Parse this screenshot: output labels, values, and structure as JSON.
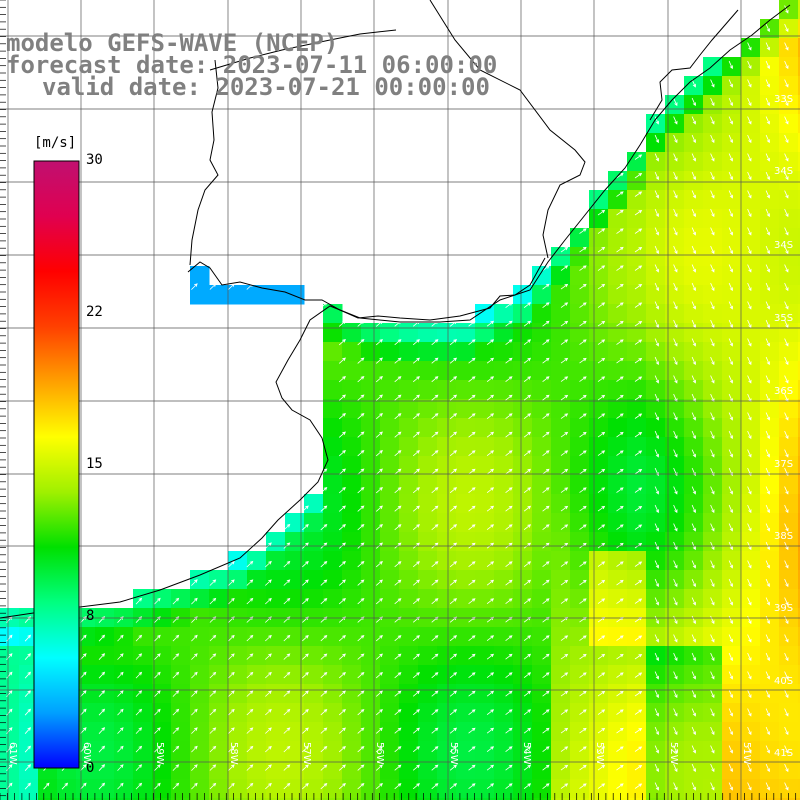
{
  "titles": {
    "model": "modelo GEFS-WAVE (NCEP)",
    "forecast": "forecast date: 2023-07-11 06:00:00",
    "valid": "valid date: 2023-07-21 00:00:00"
  },
  "colorbar": {
    "unit": "[m/s]",
    "ticks": [
      "30",
      "22",
      "15",
      "8",
      "0"
    ],
    "min": 0,
    "max": 30,
    "colors": [
      "#0000ff",
      "#00a0ff",
      "#00ffff",
      "#00ff80",
      "#00e000",
      "#a0f000",
      "#ffff00",
      "#ffa000",
      "#ff4000",
      "#ff0000",
      "#e00050",
      "#c01070"
    ]
  },
  "map": {
    "variable": "wind speed",
    "units": "m/s",
    "lat_labels": [
      "33S",
      "34S",
      "35S",
      "36S",
      "37S",
      "38S",
      "39S",
      "40S",
      "41S"
    ],
    "lon_labels": [
      "61W",
      "60W",
      "59W",
      "58W",
      "57W",
      "56W",
      "55W",
      "54W",
      "53W",
      "52W",
      "51W"
    ],
    "land_color": "#ffffff",
    "grid_color": "#555555",
    "coast_color": "#000000",
    "arrow_color": "#ffffff",
    "wind_direction_from": "southwest"
  }
}
